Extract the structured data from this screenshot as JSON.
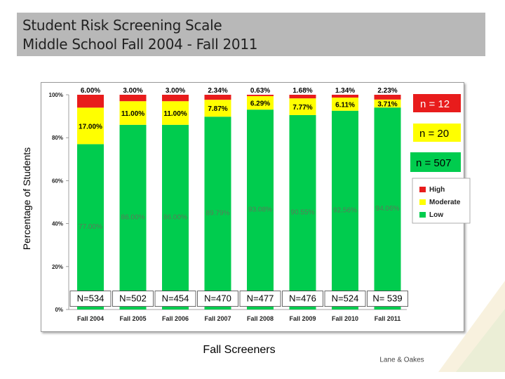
{
  "header": {
    "title_line1": "Student Risk Screening Scale",
    "title_line2": "Middle School Fall 2004  -  Fall 2011"
  },
  "footer": {
    "x_title": "Fall Screeners",
    "credit": "Lane & Oakes"
  },
  "colors": {
    "low": "#00cc4e",
    "moderate": "#ffff00",
    "high": "#e81c1c",
    "title_bar": "#b8b8b8"
  },
  "chart_data": {
    "type": "bar",
    "stacked": true,
    "ylabel": "Percentage of Students",
    "xlabel": "Fall Screeners",
    "ylim": [
      0,
      100
    ],
    "y_ticks": [
      "0%",
      "20%",
      "40%",
      "60%",
      "80%",
      "100%"
    ],
    "categories": [
      "Fall 2004",
      "Fall 2005",
      "Fall 2006",
      "Fall 2007",
      "Fall 2008",
      "Fall 2009",
      "Fall 2010",
      "Fall 2011"
    ],
    "series": [
      {
        "name": "Low",
        "values": [
          77.0,
          86.0,
          86.0,
          89.79,
          93.08,
          90.55,
          92.56,
          94.06
        ],
        "labels": [
          "77.00%",
          "86.00%",
          "86.00%",
          "89.79%",
          "93.08%",
          "90.55%",
          "92.56%",
          "94.06%"
        ]
      },
      {
        "name": "Moderate",
        "values": [
          17.0,
          11.0,
          11.0,
          7.87,
          6.29,
          7.77,
          6.11,
          3.71
        ],
        "labels": [
          "17.00%",
          "11.00%",
          "11.00%",
          "7.87%",
          "6.29%",
          "7.77%",
          "6.11%",
          "3.71%"
        ]
      },
      {
        "name": "High",
        "values": [
          6.0,
          3.0,
          3.0,
          2.34,
          0.63,
          1.68,
          1.34,
          2.23
        ],
        "labels": [
          "6.00%",
          "3.00%",
          "3.00%",
          "2.34%",
          "0.63%",
          "1.68%",
          "1.34%",
          "2.23%"
        ]
      }
    ],
    "n_labels": [
      "N=534",
      "N=502",
      "N=454",
      "N=470",
      "N=477",
      "N=476",
      "N=524",
      "N= 539"
    ],
    "legend": {
      "position": "right",
      "entries": [
        "High",
        "Moderate",
        "Low"
      ]
    },
    "annotations": [
      "n = 12",
      "n = 20",
      "n = 507"
    ]
  }
}
